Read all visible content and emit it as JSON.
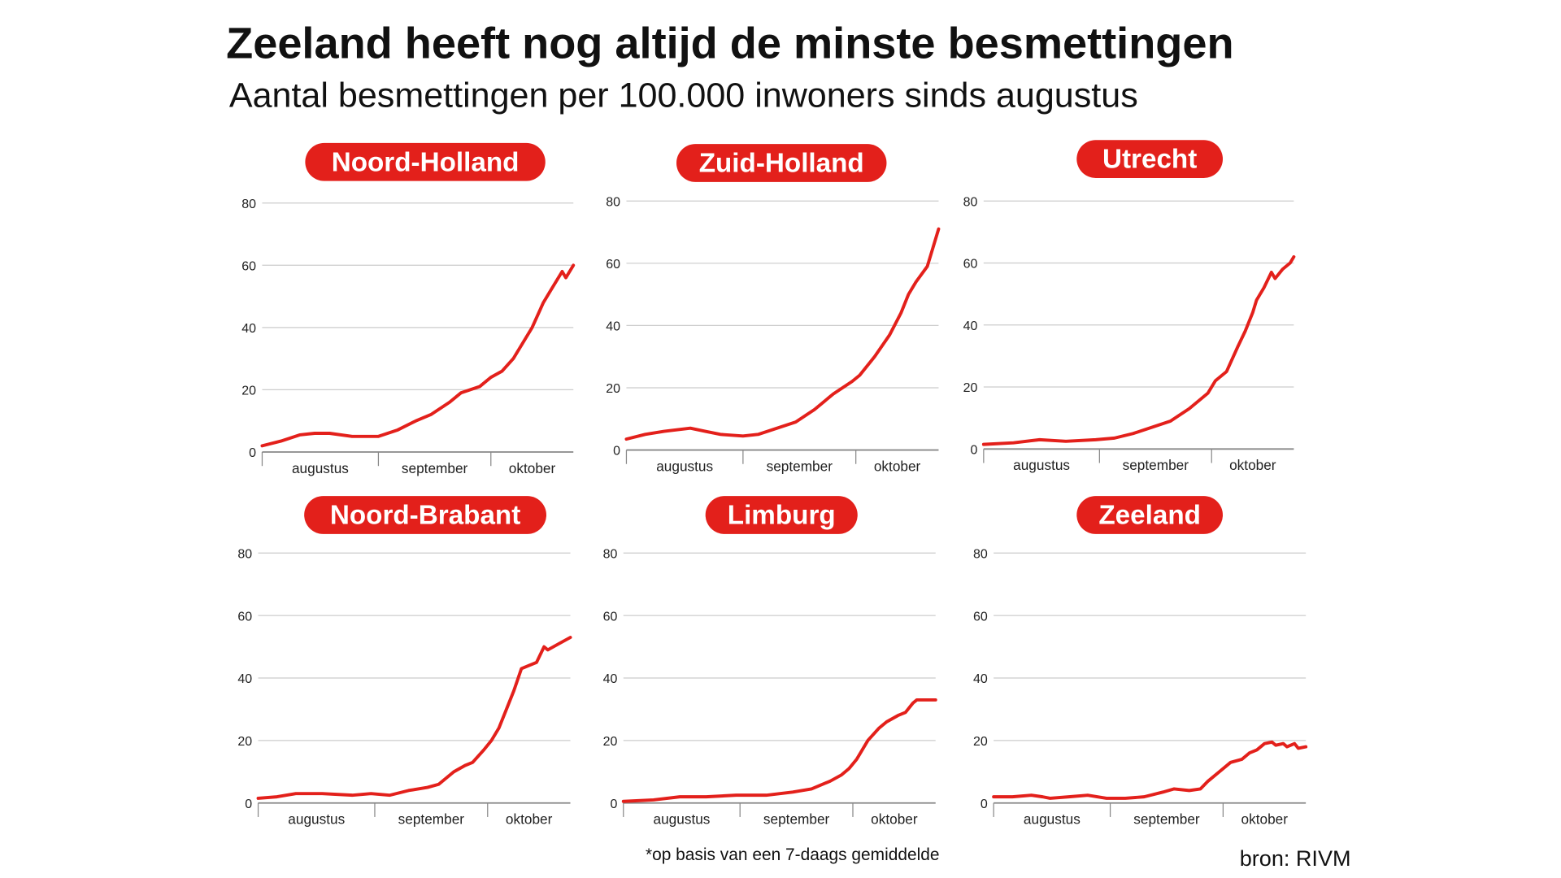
{
  "title": "Zeeland heeft nog altijd de minste besmettingen",
  "subtitle": "Aantal besmettingen per 100.000 inwoners sinds augustus",
  "footnote": "*op basis van een 7-daags gemiddelde",
  "source": "bron: RIVM",
  "colors": {
    "line": "#e3201b",
    "pill": "#e3201b",
    "grid": "#cccccc",
    "axis": "#888888"
  },
  "chart_data": [
    {
      "type": "line",
      "title": "Noord-Holland",
      "ylim": [
        0,
        80
      ],
      "yticks": [
        "0",
        "20",
        "40",
        "60",
        "80"
      ],
      "xticks": [
        "augustus",
        "september",
        "oktober"
      ],
      "grid": true,
      "x": [
        0,
        5,
        10,
        14,
        18,
        24,
        31,
        36,
        41,
        45,
        50,
        53,
        58,
        61,
        64,
        67,
        70,
        72,
        75,
        77,
        80,
        81,
        83
      ],
      "values": [
        2,
        3.5,
        5.5,
        6,
        6,
        5,
        5,
        7,
        10,
        12,
        16,
        19,
        21,
        24,
        26,
        30,
        36,
        40,
        48,
        52,
        58,
        56,
        60
      ]
    },
    {
      "type": "line",
      "title": "Zuid-Holland",
      "ylim": [
        0,
        80
      ],
      "yticks": [
        "0",
        "20",
        "40",
        "60",
        "80"
      ],
      "xticks": [
        "augustus",
        "september",
        "oktober"
      ],
      "grid": true,
      "x": [
        0,
        5,
        10,
        17,
        21,
        25,
        31,
        35,
        40,
        45,
        50,
        55,
        60,
        62,
        66,
        70,
        73,
        75,
        77,
        80,
        81,
        83
      ],
      "values": [
        3.5,
        5,
        6,
        7,
        6,
        5,
        4.5,
        5,
        7,
        9,
        13,
        18,
        22,
        24,
        30,
        37,
        44,
        50,
        54,
        59,
        63,
        71
      ]
    },
    {
      "type": "line",
      "title": "Utrecht",
      "ylim": [
        0,
        80
      ],
      "yticks": [
        "0",
        "20",
        "40",
        "60",
        "80"
      ],
      "xticks": [
        "augustus",
        "september",
        "oktober"
      ],
      "grid": true,
      "x": [
        0,
        8,
        15,
        22,
        30,
        35,
        40,
        45,
        50,
        55,
        60,
        62,
        65,
        68,
        70,
        72,
        73,
        75,
        77,
        78,
        80,
        82,
        83
      ],
      "values": [
        1.5,
        2,
        3,
        2.5,
        3,
        3.5,
        5,
        7,
        9,
        13,
        18,
        22,
        25,
        33,
        38,
        44,
        48,
        52,
        57,
        55,
        58,
        60,
        62
      ]
    },
    {
      "type": "line",
      "title": "Noord-Brabant",
      "ylim": [
        0,
        80
      ],
      "yticks": [
        "0",
        "20",
        "40",
        "60",
        "80"
      ],
      "xticks": [
        "augustus",
        "september",
        "oktober"
      ],
      "grid": true,
      "x": [
        0,
        5,
        10,
        17,
        25,
        30,
        35,
        40,
        45,
        48,
        52,
        55,
        57,
        60,
        62,
        64,
        66,
        68,
        70,
        72,
        74,
        76,
        77,
        80,
        83
      ],
      "values": [
        1.5,
        2,
        3,
        3,
        2.5,
        3,
        2.5,
        4,
        5,
        6,
        10,
        12,
        13,
        17,
        20,
        24,
        30,
        36,
        43,
        44,
        45,
        50,
        49,
        51,
        53
      ]
    },
    {
      "type": "line",
      "title": "Limburg",
      "ylim": [
        0,
        80
      ],
      "yticks": [
        "0",
        "20",
        "40",
        "60",
        "80"
      ],
      "xticks": [
        "augustus",
        "september",
        "oktober"
      ],
      "grid": true,
      "x": [
        0,
        8,
        15,
        22,
        30,
        38,
        45,
        50,
        55,
        58,
        60,
        62,
        65,
        68,
        70,
        73,
        75,
        77,
        78,
        80,
        83
      ],
      "values": [
        0.5,
        1,
        2,
        2,
        2.5,
        2.5,
        3.5,
        4.5,
        7,
        9,
        11,
        14,
        20,
        24,
        26,
        28,
        29,
        32,
        33,
        33,
        33
      ]
    },
    {
      "type": "line",
      "title": "Zeeland",
      "ylim": [
        0,
        80
      ],
      "yticks": [
        "0",
        "20",
        "40",
        "60",
        "80"
      ],
      "xticks": [
        "augustus",
        "september",
        "oktober"
      ],
      "grid": true,
      "x": [
        0,
        5,
        10,
        13,
        15,
        20,
        25,
        30,
        35,
        40,
        45,
        48,
        52,
        55,
        57,
        60,
        63,
        66,
        68,
        70,
        72,
        74,
        75,
        77,
        78,
        80,
        81,
        83
      ],
      "values": [
        2,
        2,
        2.5,
        2,
        1.5,
        2,
        2.5,
        1.5,
        1.5,
        2,
        3.5,
        4.5,
        4,
        4.5,
        7,
        10,
        13,
        14,
        16,
        17,
        19,
        19.5,
        18.5,
        19,
        18,
        19,
        17.5,
        18
      ]
    }
  ]
}
